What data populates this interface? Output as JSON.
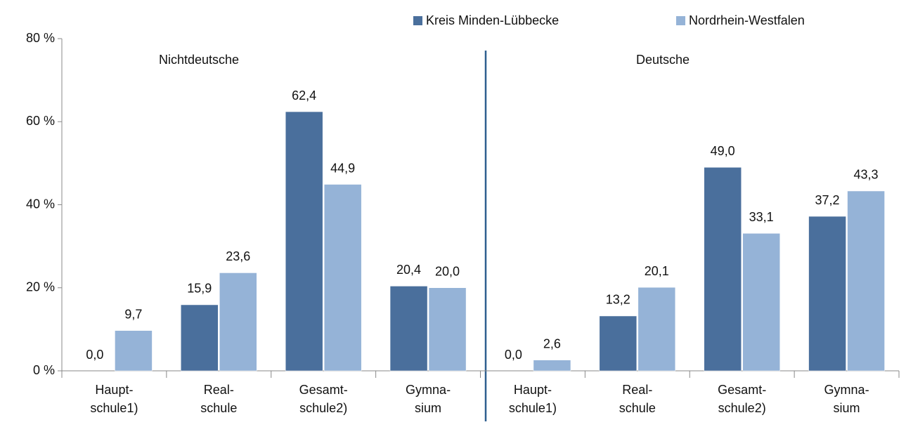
{
  "chart_data": {
    "type": "bar",
    "annotations": [
      "Nichtdeutsche",
      "Deutsche"
    ],
    "categories": [
      "Haupt-\nschule1)",
      "Real-\nschule",
      "Gesamt-\nschule2)",
      "Gymna-\nsium",
      "Haupt-\nschule1)",
      "Real-\nschule",
      "Gesamt-\nschule2)",
      "Gymna-\nsium"
    ],
    "series": [
      {
        "name": "Kreis Minden-Lübbecke",
        "color": "#4a6f9c",
        "values": [
          0.0,
          15.9,
          62.4,
          20.4,
          0.0,
          13.2,
          49.0,
          37.2
        ],
        "value_labels": [
          "0,0",
          "15,9",
          "62,4",
          "20,4",
          "0,0",
          "13,2",
          "49,0",
          "37,2"
        ]
      },
      {
        "name": "Nordrhein-Westfalen",
        "color": "#95b3d7",
        "values": [
          9.7,
          23.6,
          44.9,
          20.0,
          2.6,
          20.1,
          33.1,
          43.3
        ],
        "value_labels": [
          "9,7",
          "23,6",
          "44,9",
          "20,0",
          "2,6",
          "20,1",
          "33,1",
          "43,3"
        ]
      }
    ],
    "ylim": [
      0,
      80
    ],
    "yticks": [
      {
        "value": 0,
        "label": "0 %"
      },
      {
        "value": 20,
        "label": "20 %"
      },
      {
        "value": 40,
        "label": "40 %"
      },
      {
        "value": 60,
        "label": "60 %"
      },
      {
        "value": 80,
        "label": "80 %"
      }
    ],
    "legend": "top"
  }
}
